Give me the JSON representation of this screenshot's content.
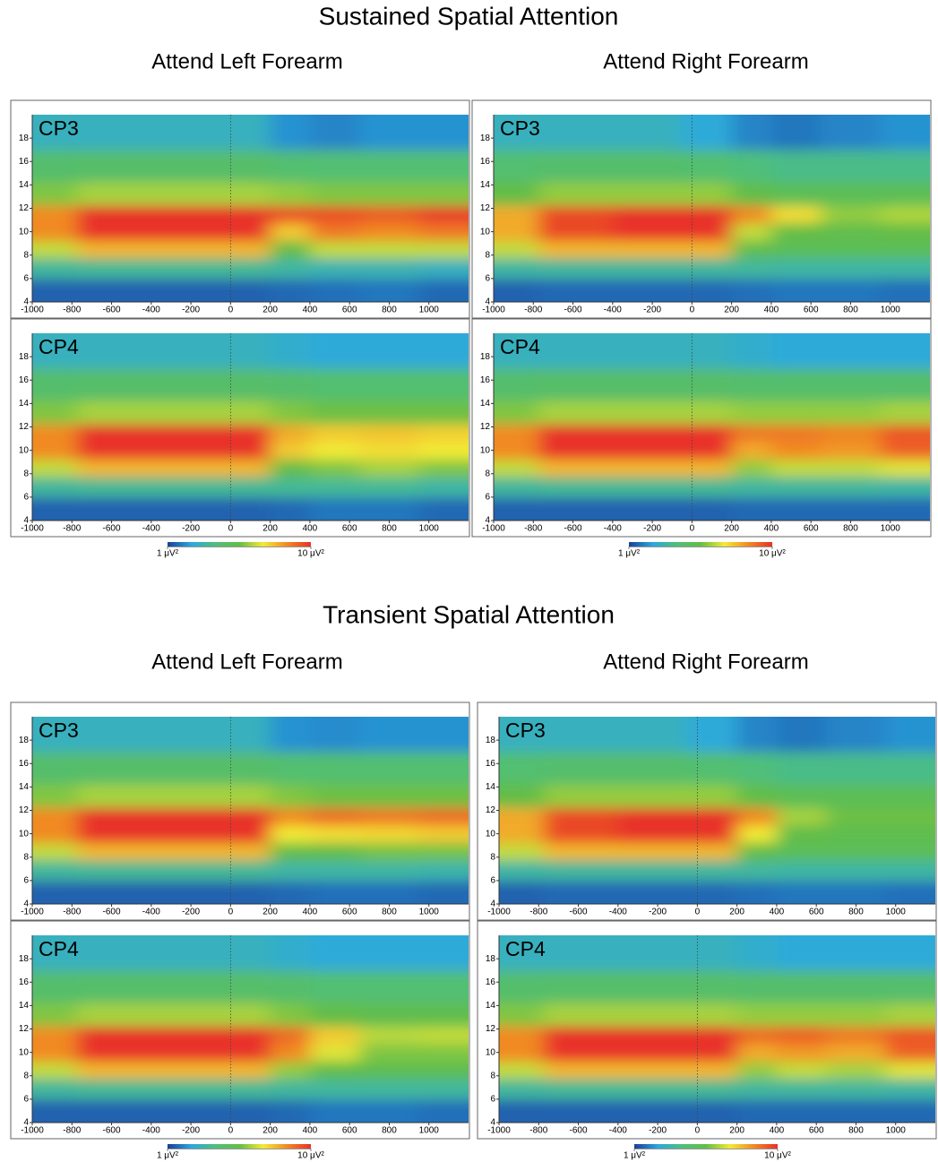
{
  "sections": [
    {
      "title": "Sustained Spatial Attention",
      "columns": [
        "Attend Left Forearm",
        "Attend Right Forearm"
      ]
    },
    {
      "title": "Transient Spatial Attention",
      "columns": [
        "Attend Left Forearm",
        "Attend Right Forearm"
      ]
    }
  ],
  "colorbars": [
    {
      "zlim": [
        1,
        10
      ],
      "ticks": [
        {
          "value": 1,
          "label": "1 μV²"
        },
        {
          "value": 10,
          "label": "10 μV²"
        }
      ],
      "colormap": [
        "#1b3f96",
        "#2ba8e0",
        "#4fbf7a",
        "#63bd46",
        "#f2ea36",
        "#f18a24",
        "#e8302a"
      ]
    },
    {
      "zlim": [
        1,
        10
      ],
      "ticks": [
        {
          "value": 1,
          "label": "1 μV²"
        },
        {
          "value": 10,
          "label": "10 μV²"
        }
      ],
      "colormap": [
        "#1b3f96",
        "#2ba8e0",
        "#4fbf7a",
        "#63bd46",
        "#f2ea36",
        "#f18a24",
        "#e8302a"
      ]
    },
    {
      "zlim": [
        1,
        10
      ],
      "ticks": [
        {
          "value": 1,
          "label": "1 μV²"
        },
        {
          "value": 10,
          "label": "10 μV²"
        }
      ],
      "colormap": [
        "#1b3f96",
        "#2ba8e0",
        "#4fbf7a",
        "#63bd46",
        "#f2ea36",
        "#f18a24",
        "#e8302a"
      ]
    },
    {
      "zlim": [
        1,
        10
      ],
      "ticks": [
        {
          "value": 1,
          "label": "1 μV²"
        },
        {
          "value": 10,
          "label": "10 μV²"
        }
      ],
      "colormap": [
        "#1b3f96",
        "#2ba8e0",
        "#4fbf7a",
        "#63bd46",
        "#f2ea36",
        "#f18a24",
        "#e8302a"
      ]
    }
  ],
  "chart_data": [
    {
      "type": "heatmap",
      "title": "CP3",
      "x": [
        -950,
        -600,
        -200,
        100,
        300,
        500,
        800,
        1100
      ],
      "y": [
        5,
        7,
        8.5,
        10,
        11.5,
        13,
        15.5,
        18.5
      ],
      "z": [
        [
          1.5,
          1.5,
          1.5,
          1.5,
          1.6,
          1.7,
          1.8,
          1.6
        ],
        [
          3.5,
          3.6,
          3.6,
          3.6,
          3.4,
          3.2,
          3.2,
          3.0
        ],
        [
          6.5,
          7.8,
          7.8,
          7.8,
          5.5,
          6.5,
          6.5,
          6.5
        ],
        [
          8.5,
          10,
          10,
          10,
          7.5,
          8.8,
          8.5,
          8.8
        ],
        [
          8.5,
          10,
          10,
          10,
          9.5,
          9.5,
          9.3,
          9.8
        ],
        [
          5.8,
          6.2,
          6.2,
          6.2,
          6,
          5.8,
          5.8,
          5.8
        ],
        [
          4.4,
          4.5,
          4.5,
          4.5,
          4.3,
          4.2,
          4.2,
          4.2
        ],
        [
          3,
          3,
          3,
          3,
          2.2,
          2,
          2.2,
          2.2
        ]
      ],
      "xlim": [
        -1000,
        1200
      ],
      "ylim": [
        4,
        20
      ],
      "xticks": [
        -1000,
        -800,
        -600,
        -400,
        -200,
        0,
        200,
        400,
        600,
        800,
        1000
      ],
      "yticks": [
        4,
        6,
        8,
        10,
        12,
        14,
        16,
        18
      ],
      "vline": 0
    },
    {
      "type": "heatmap",
      "title": "CP4",
      "x": [
        -950,
        -600,
        -200,
        100,
        300,
        500,
        800,
        1100
      ],
      "y": [
        5,
        7,
        8.5,
        10,
        11.5,
        13,
        15.5,
        18.5
      ],
      "z": [
        [
          1.5,
          1.5,
          1.5,
          1.5,
          1.6,
          1.8,
          1.8,
          1.6
        ],
        [
          3.5,
          3.6,
          3.6,
          3.6,
          3.6,
          3.6,
          3.6,
          3.4
        ],
        [
          6.5,
          7.8,
          7.8,
          7.8,
          5.5,
          5.8,
          6.2,
          5.8
        ],
        [
          8.5,
          10,
          10,
          10,
          7.5,
          7,
          7.2,
          7
        ],
        [
          8.5,
          10,
          10,
          10,
          8,
          7.5,
          7.6,
          7.4
        ],
        [
          5.8,
          6.2,
          6.2,
          6.2,
          5.8,
          5.6,
          5.6,
          5.6
        ],
        [
          4.4,
          4.5,
          4.5,
          4.5,
          4.4,
          4.3,
          4.3,
          4.3
        ],
        [
          3,
          3,
          3,
          3,
          2.8,
          2.6,
          2.6,
          2.6
        ]
      ],
      "xlim": [
        -1000,
        1200
      ],
      "ylim": [
        4,
        20
      ],
      "xticks": [
        -1000,
        -800,
        -600,
        -400,
        -200,
        0,
        200,
        400,
        600,
        800,
        1000
      ],
      "yticks": [
        4,
        6,
        8,
        10,
        12,
        14,
        16,
        18
      ],
      "vline": 0
    },
    {
      "type": "heatmap",
      "title": "CP3",
      "x": [
        -950,
        -600,
        -200,
        100,
        300,
        500,
        800,
        1100
      ],
      "y": [
        5,
        7,
        8.5,
        10,
        11.5,
        13,
        15.5,
        18.5
      ],
      "z": [
        [
          1.5,
          1.6,
          1.6,
          1.6,
          1.7,
          1.8,
          1.8,
          1.7
        ],
        [
          3.4,
          3.5,
          3.5,
          3.5,
          3.5,
          3.4,
          3.4,
          3.4
        ],
        [
          6.5,
          7.8,
          7.8,
          7.8,
          5.2,
          5,
          5,
          5
        ],
        [
          8,
          9.6,
          10,
          10,
          6.5,
          5.5,
          5.3,
          5.5
        ],
        [
          8,
          9.6,
          10,
          10,
          8.5,
          7.2,
          6,
          6.3
        ],
        [
          5.5,
          6,
          6,
          6,
          5.4,
          5,
          5,
          5
        ],
        [
          4.3,
          4.4,
          4.4,
          4.3,
          4,
          3.8,
          3.8,
          3.8
        ],
        [
          3,
          3,
          3,
          2.6,
          2,
          1.8,
          2,
          2.2
        ]
      ],
      "xlim": [
        -1000,
        1200
      ],
      "ylim": [
        4,
        20
      ],
      "xticks": [
        -1000,
        -800,
        -600,
        -400,
        -200,
        0,
        200,
        400,
        600,
        800,
        1000
      ],
      "yticks": [
        4,
        6,
        8,
        10,
        12,
        14,
        16,
        18
      ],
      "vline": 0
    },
    {
      "type": "heatmap",
      "title": "CP4",
      "x": [
        -950,
        -600,
        -200,
        100,
        300,
        500,
        800,
        1100
      ],
      "y": [
        5,
        7,
        8.5,
        10,
        11.5,
        13,
        15.5,
        18.5
      ],
      "z": [
        [
          1.5,
          1.5,
          1.5,
          1.5,
          1.6,
          1.6,
          1.6,
          1.6
        ],
        [
          3.5,
          3.6,
          3.6,
          3.6,
          3.5,
          3.5,
          3.5,
          3.4
        ],
        [
          6.5,
          7.8,
          7.8,
          7.8,
          6,
          6.5,
          6.5,
          6.8
        ],
        [
          8.5,
          10,
          10,
          10,
          8,
          8.5,
          8.3,
          9.2
        ],
        [
          8.5,
          10,
          10,
          10,
          8.8,
          8.8,
          8.6,
          9.4
        ],
        [
          5.8,
          6.2,
          6.2,
          6.2,
          6,
          6,
          6,
          6.2
        ],
        [
          4.4,
          4.5,
          4.5,
          4.5,
          4.4,
          4.4,
          4.4,
          4.4
        ],
        [
          3,
          3,
          3,
          3,
          2.8,
          2.6,
          2.6,
          2.6
        ]
      ],
      "xlim": [
        -1000,
        1200
      ],
      "ylim": [
        4,
        20
      ],
      "xticks": [
        -1000,
        -800,
        -600,
        -400,
        -200,
        0,
        200,
        400,
        600,
        800,
        1000
      ],
      "yticks": [
        4,
        6,
        8,
        10,
        12,
        14,
        16,
        18
      ],
      "vline": 0
    },
    {
      "type": "heatmap",
      "title": "CP3",
      "x": [
        -950,
        -600,
        -200,
        100,
        300,
        500,
        800,
        1100
      ],
      "y": [
        5,
        7,
        8.5,
        10,
        11.5,
        13,
        15.5,
        18.5
      ],
      "z": [
        [
          1.5,
          1.5,
          1.5,
          1.5,
          1.6,
          1.7,
          1.7,
          1.6
        ],
        [
          3.5,
          3.6,
          3.6,
          3.6,
          3.4,
          3.4,
          3.4,
          3.3
        ],
        [
          6.5,
          7.8,
          7.8,
          7.8,
          5.5,
          5.5,
          5.7,
          5.7
        ],
        [
          8.5,
          10,
          10,
          10,
          7,
          7.2,
          7.3,
          7.5
        ],
        [
          8.5,
          10,
          10,
          10,
          8.5,
          9,
          8.8,
          9
        ],
        [
          5.8,
          6.2,
          6.2,
          6.2,
          5.8,
          5.6,
          5.6,
          5.6
        ],
        [
          4.4,
          4.5,
          4.5,
          4.5,
          4.3,
          4.3,
          4.3,
          4.3
        ],
        [
          3,
          3,
          3,
          3,
          2.2,
          2.1,
          2.2,
          2.2
        ]
      ],
      "xlim": [
        -1000,
        1200
      ],
      "ylim": [
        4,
        20
      ],
      "xticks": [
        -1000,
        -800,
        -600,
        -400,
        -200,
        0,
        200,
        400,
        600,
        800,
        1000
      ],
      "yticks": [
        4,
        6,
        8,
        10,
        12,
        14,
        16,
        18
      ],
      "vline": 0
    },
    {
      "type": "heatmap",
      "title": "CP4",
      "x": [
        -950,
        -600,
        -200,
        100,
        300,
        500,
        800,
        1100
      ],
      "y": [
        5,
        7,
        8.5,
        10,
        11.5,
        13,
        15.5,
        18.5
      ],
      "z": [
        [
          1.5,
          1.5,
          1.5,
          1.5,
          1.6,
          1.8,
          1.8,
          1.7
        ],
        [
          3.5,
          3.6,
          3.6,
          3.6,
          3.5,
          3.5,
          3.5,
          3.5
        ],
        [
          6.5,
          7.8,
          7.8,
          7.8,
          6,
          5.4,
          5.2,
          5.2
        ],
        [
          8.5,
          10,
          10,
          10,
          8.5,
          6.8,
          5.8,
          5.8
        ],
        [
          8.5,
          10,
          10,
          10,
          9,
          7.5,
          6.4,
          6.5
        ],
        [
          5.8,
          6.2,
          6.2,
          6.2,
          5.8,
          5.4,
          5.2,
          5.2
        ],
        [
          4.4,
          4.5,
          4.5,
          4.5,
          4.4,
          4.2,
          4.2,
          4.2
        ],
        [
          3,
          3,
          3,
          3,
          2.8,
          2.6,
          2.6,
          2.6
        ]
      ],
      "xlim": [
        -1000,
        1200
      ],
      "ylim": [
        4,
        20
      ],
      "xticks": [
        -1000,
        -800,
        -600,
        -400,
        -200,
        0,
        200,
        400,
        600,
        800,
        1000
      ],
      "yticks": [
        4,
        6,
        8,
        10,
        12,
        14,
        16,
        18
      ],
      "vline": 0
    },
    {
      "type": "heatmap",
      "title": "CP3",
      "x": [
        -950,
        -600,
        -200,
        100,
        300,
        500,
        800,
        1100
      ],
      "y": [
        5,
        7,
        8.5,
        10,
        11.5,
        13,
        15.5,
        18.5
      ],
      "z": [
        [
          1.5,
          1.6,
          1.6,
          1.6,
          1.7,
          1.8,
          1.8,
          1.7
        ],
        [
          3.4,
          3.5,
          3.5,
          3.5,
          3.5,
          3.4,
          3.4,
          3.4
        ],
        [
          6.5,
          7.8,
          7.8,
          7.8,
          5.5,
          5,
          5,
          5
        ],
        [
          8,
          9.6,
          10,
          10,
          7,
          5.4,
          5.2,
          5.2
        ],
        [
          8,
          9.6,
          10,
          10,
          8.5,
          6.2,
          5.6,
          5.6
        ],
        [
          5.5,
          6,
          6,
          6,
          5.4,
          5,
          5,
          5
        ],
        [
          4.3,
          4.4,
          4.4,
          4.3,
          4,
          3.8,
          3.8,
          3.8
        ],
        [
          3,
          3,
          3,
          2.6,
          2,
          1.8,
          2,
          2.2
        ]
      ],
      "xlim": [
        -1000,
        1200
      ],
      "ylim": [
        4,
        20
      ],
      "xticks": [
        -1000,
        -800,
        -600,
        -400,
        -200,
        0,
        200,
        400,
        600,
        800,
        1000
      ],
      "yticks": [
        4,
        6,
        8,
        10,
        12,
        14,
        16,
        18
      ],
      "vline": 0
    },
    {
      "type": "heatmap",
      "title": "CP4",
      "x": [
        -950,
        -600,
        -200,
        100,
        300,
        500,
        800,
        1100
      ],
      "y": [
        5,
        7,
        8.5,
        10,
        11.5,
        13,
        15.5,
        18.5
      ],
      "z": [
        [
          1.5,
          1.5,
          1.5,
          1.5,
          1.6,
          1.6,
          1.6,
          1.6
        ],
        [
          3.5,
          3.6,
          3.6,
          3.6,
          3.5,
          3.5,
          3.5,
          3.4
        ],
        [
          6.5,
          7.8,
          7.8,
          7.8,
          6,
          6.5,
          6.2,
          6.8
        ],
        [
          8.5,
          10,
          10,
          10,
          8,
          8.3,
          8,
          9.2
        ],
        [
          8.5,
          10,
          10,
          10,
          9,
          9.2,
          8.8,
          9.4
        ],
        [
          5.8,
          6.2,
          6.2,
          6.2,
          6,
          6,
          6,
          6.2
        ],
        [
          4.4,
          4.5,
          4.5,
          4.5,
          4.4,
          4.4,
          4.4,
          4.4
        ],
        [
          3,
          3,
          3,
          3,
          2.8,
          2.6,
          2.6,
          2.6
        ]
      ],
      "xlim": [
        -1000,
        1200
      ],
      "ylim": [
        4,
        20
      ],
      "xticks": [
        -1000,
        -800,
        -600,
        -400,
        -200,
        0,
        200,
        400,
        600,
        800,
        1000
      ],
      "yticks": [
        4,
        6,
        8,
        10,
        12,
        14,
        16,
        18
      ],
      "vline": 0
    }
  ]
}
